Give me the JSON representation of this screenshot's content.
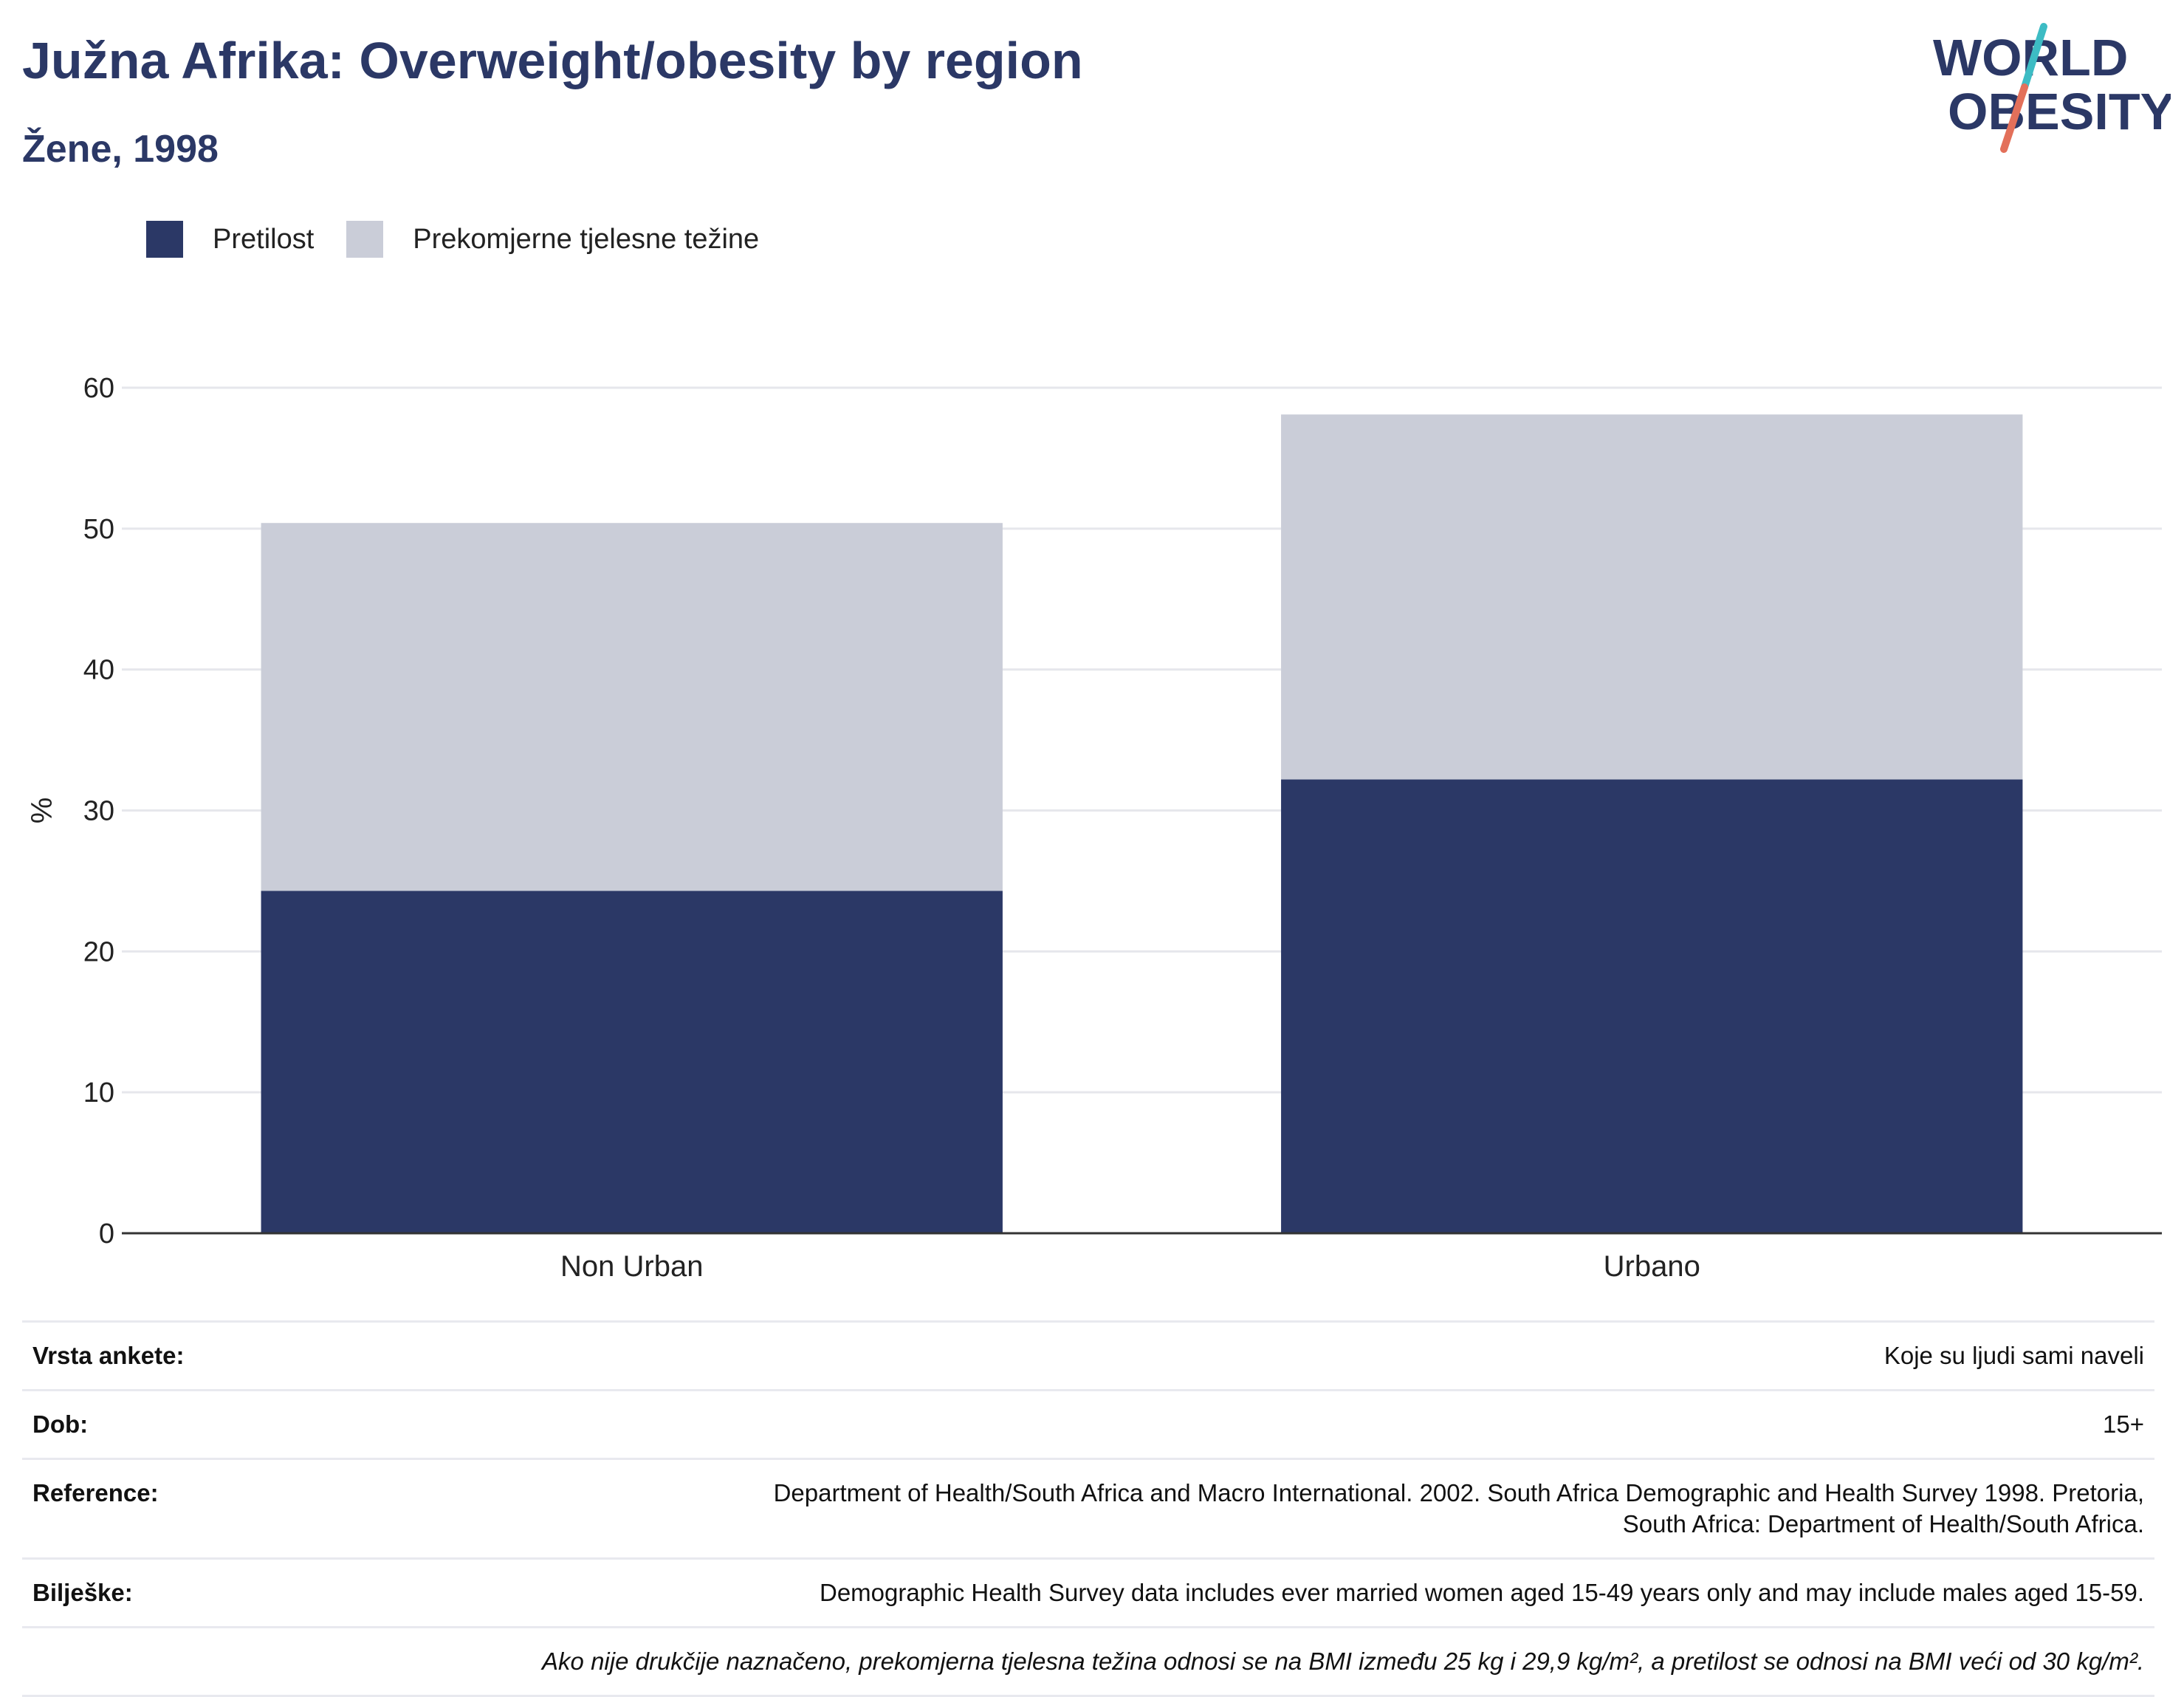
{
  "header": {
    "title": "Južna Afrika: Overweight/obesity by region",
    "subtitle": "Žene, 1998"
  },
  "logo": {
    "line1": "WORLD",
    "line2": "OBESITY",
    "colors": {
      "navy": "#2b3866",
      "teal": "#3dbcc4",
      "coral": "#e3705a"
    }
  },
  "legend": [
    {
      "label": "Pretilost",
      "color": "#2b3866"
    },
    {
      "label": "Prekomjerne tjelesne težine",
      "color": "#cacdd8"
    }
  ],
  "chart_data": {
    "type": "bar",
    "stacked": true,
    "categories": [
      "Non Urban",
      "Urbano"
    ],
    "series": [
      {
        "name": "Pretilost",
        "color": "#2b3866",
        "values": [
          24.3,
          32.2
        ]
      },
      {
        "name": "Prekomjerne tjelesne težine",
        "color": "#cacdd8",
        "values": [
          26.1,
          25.9
        ]
      }
    ],
    "ylabel": "%",
    "ylim": [
      0,
      60
    ],
    "yticks": [
      "0",
      "10",
      "20",
      "30",
      "40",
      "50",
      "60"
    ],
    "grid": true
  },
  "meta": [
    {
      "key": "Vrsta ankete:",
      "value": "Koje su ljudi sami naveli"
    },
    {
      "key": "Dob:",
      "value": "15+"
    },
    {
      "key": "Reference:",
      "value": "Department of Health/South Africa and Macro International. 2002. South Africa Demographic and Health Survey 1998. Pretoria, South Africa: Department of Health/South Africa."
    },
    {
      "key": "Bilješke:",
      "value": "Demographic Health Survey data includes ever married women aged 15-49 years only and may include males aged 15-59."
    }
  ],
  "note": "Ako nije drukčije naznačeno, prekomjerna tjelesna težina odnosi se na BMI između 25 kg i 29,9 kg/m², a pretilost se odnosi na BMI veći od 30 kg/m²."
}
